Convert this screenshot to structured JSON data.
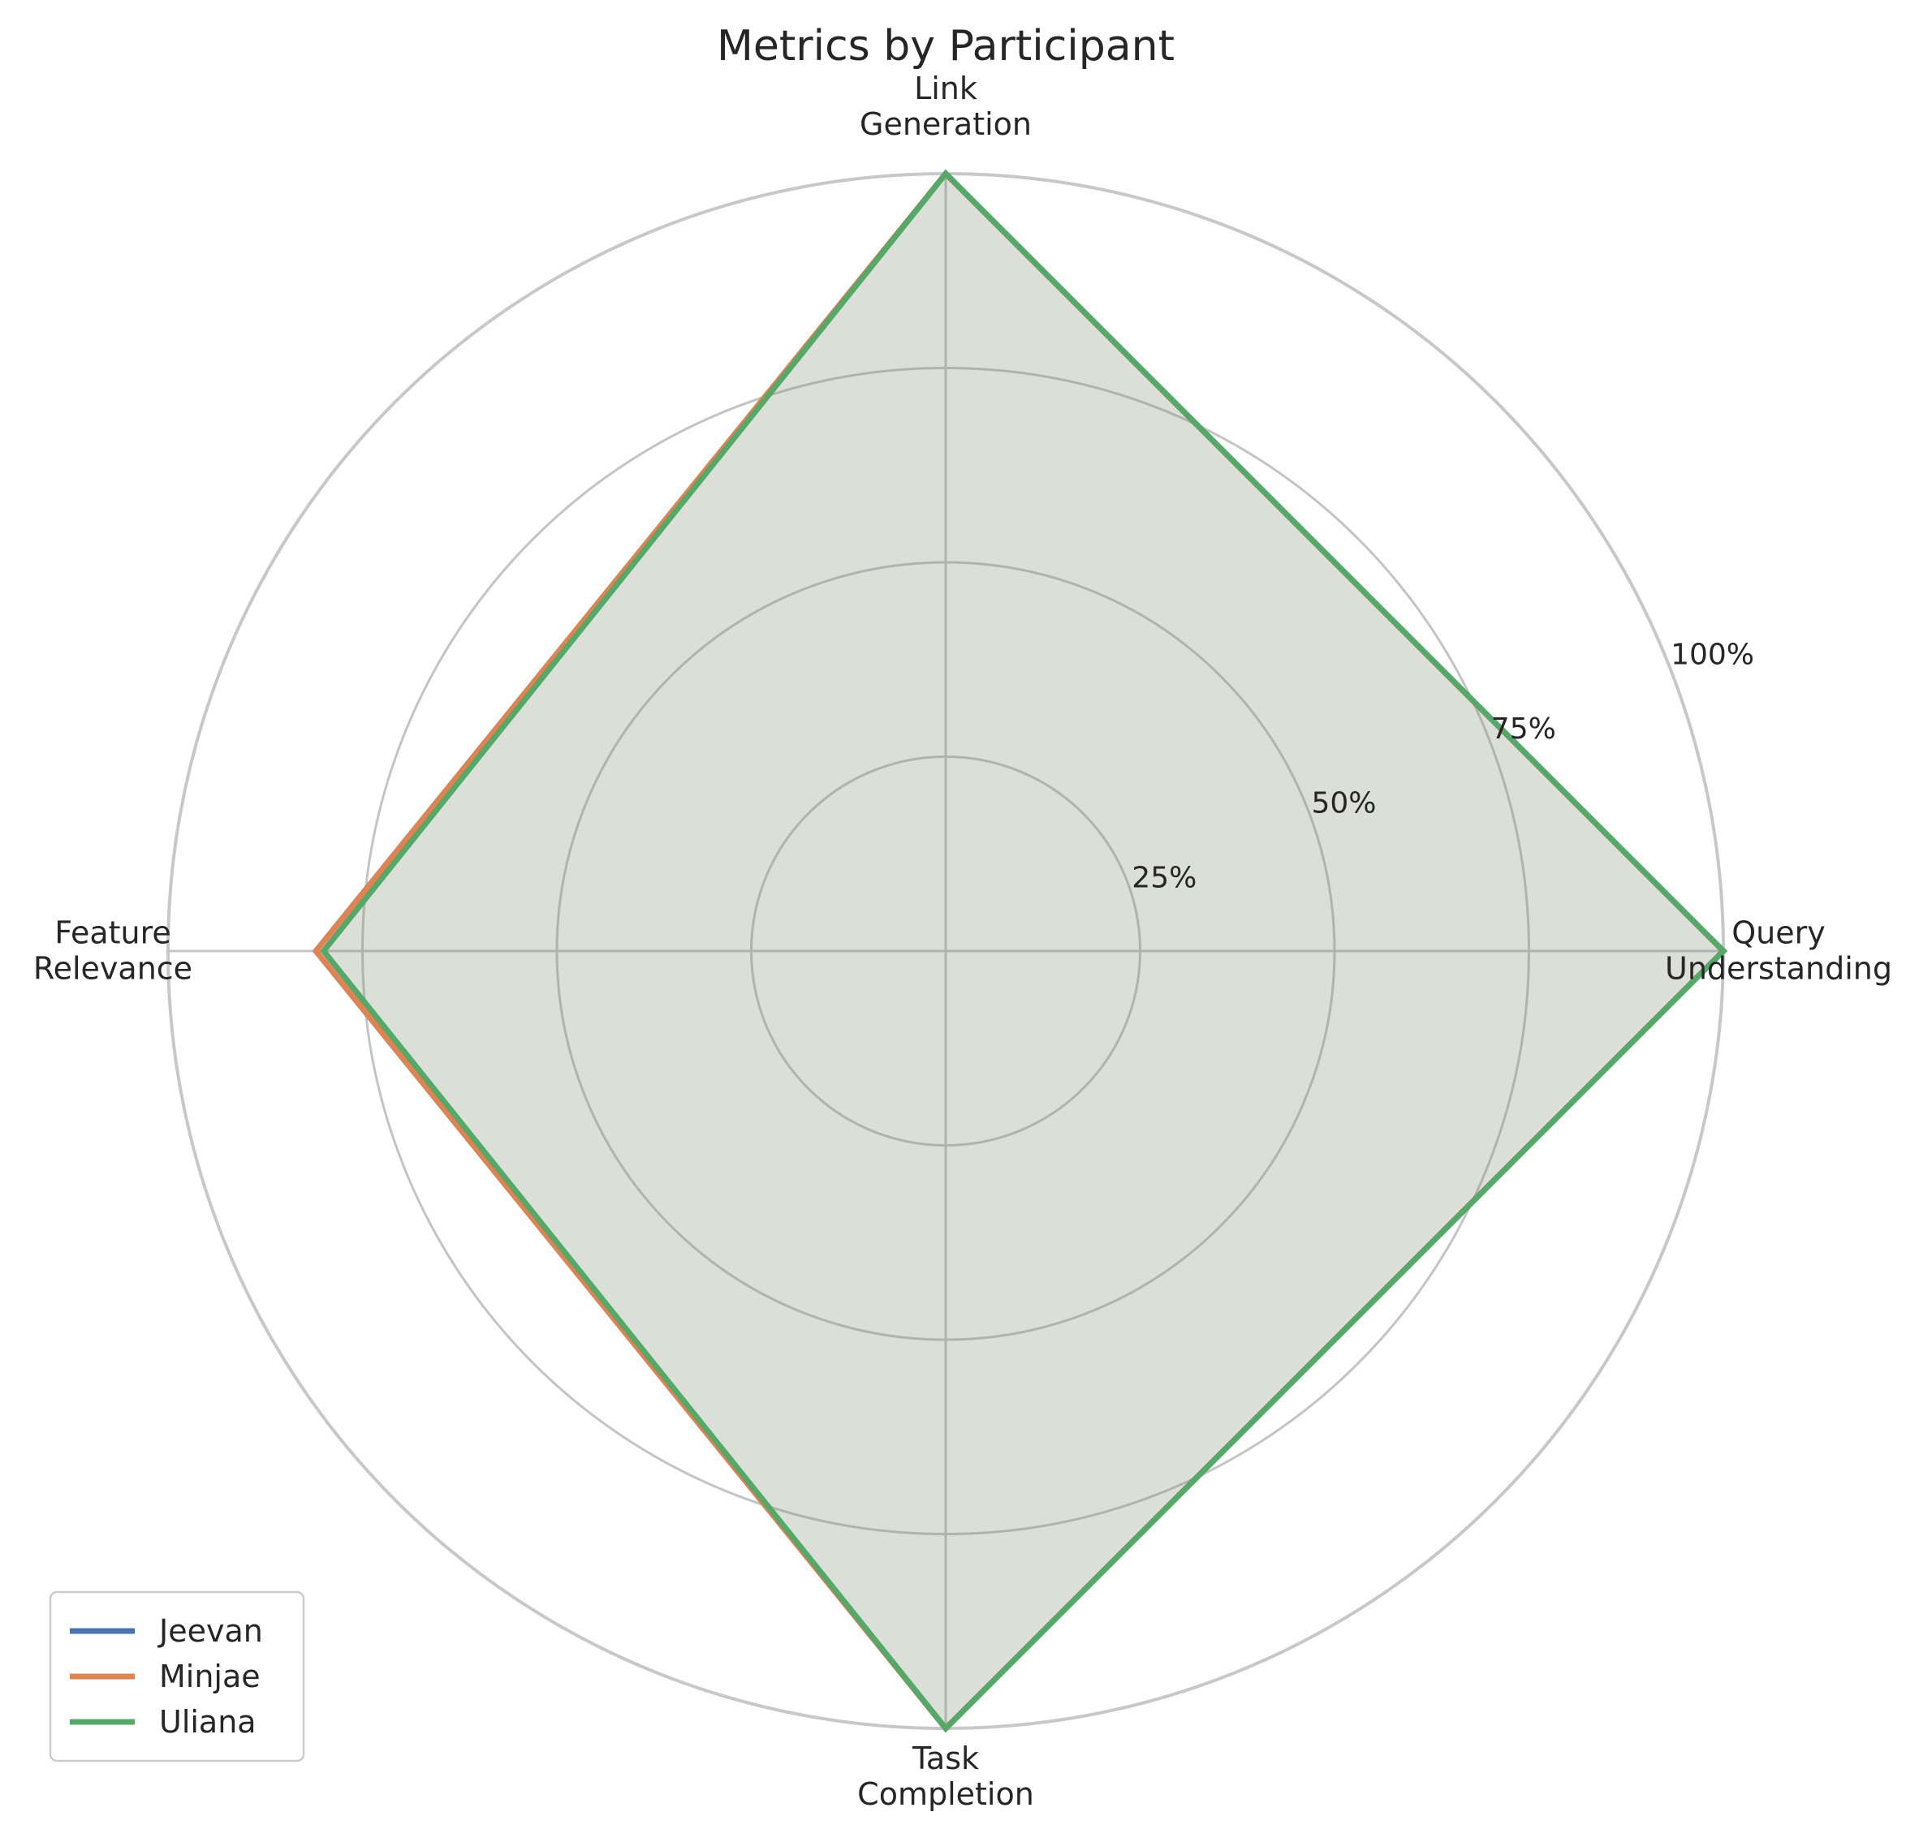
{
  "chart_data": {
    "type": "radar",
    "title": "Metrics by Participant",
    "axes": [
      [
        "Query",
        "Understanding"
      ],
      [
        "Link",
        "Generation"
      ],
      [
        "Feature",
        "Relevance"
      ],
      [
        "Task",
        "Completion"
      ]
    ],
    "rlim": [
      0,
      100
    ],
    "rticks": [
      25,
      50,
      75,
      100
    ],
    "rtick_labels": [
      "25%",
      "50%",
      "75%",
      "100%"
    ],
    "grid": true,
    "legend_position": "lower-left",
    "series": [
      {
        "name": "Jeevan",
        "color": "#4c72b0",
        "values": [
          100,
          100,
          80,
          100
        ]
      },
      {
        "name": "Minjae",
        "color": "#dd8452",
        "values": [
          100,
          100,
          81,
          100
        ]
      },
      {
        "name": "Uliana",
        "color": "#55a868",
        "values": [
          100,
          100,
          80,
          100
        ]
      }
    ]
  }
}
